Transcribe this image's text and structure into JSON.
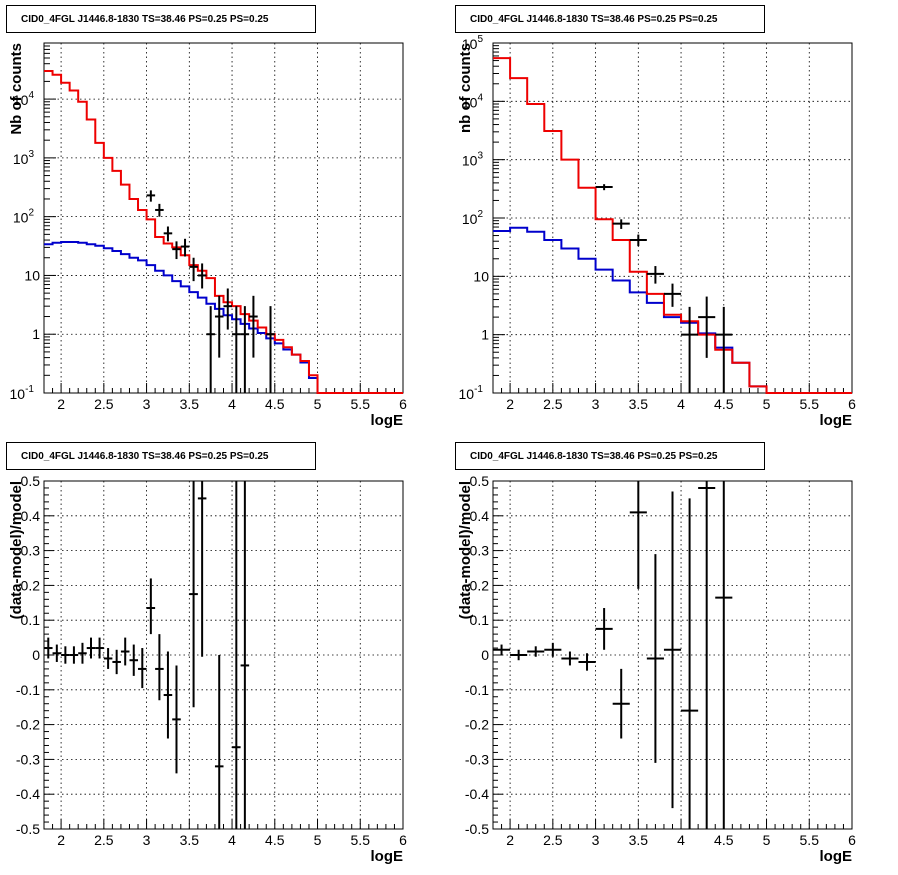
{
  "figure": {
    "panels": [
      {
        "title": "CID0_4FGL J1446.8-1830 TS=38.46 PS=0.25 PS=0.25"
      },
      {
        "title": "CID0_4FGL J1446.8-1830 TS=38.46 PS=0.25 PS=0.25"
      },
      {
        "title": "CID0_4FGL J1446.8-1830 TS=38.46 PS=0.25 PS=0.25"
      },
      {
        "title": "CID0_4FGL J1446.8-1830 TS=38.46 PS=0.25 PS=0.25"
      }
    ]
  },
  "colors": {
    "total_model": "#ee0000",
    "background_model": "#0000cc",
    "data": "#000000"
  },
  "chart_data": [
    {
      "type": "line",
      "title": "CID0_4FGL J1446.8-1830 TS=38.46 PS=0.25 PS=0.25",
      "xlabel": "logE",
      "ylabel": "Nb of counts",
      "xlim": [
        1.8,
        6.0
      ],
      "ylim": [
        0.1,
        90000
      ],
      "yscale": "log",
      "grid": true,
      "xticks": [
        "2",
        "2.5",
        "3",
        "3.5",
        "4",
        "4.5",
        "5",
        "5.5",
        "6"
      ],
      "yticks": [
        "10^-1",
        "1",
        "10",
        "10^2",
        "10^3",
        "10^4"
      ],
      "bin_edges": [
        1.8,
        1.9,
        2.0,
        2.1,
        2.2,
        2.3,
        2.4,
        2.5,
        2.6,
        2.7,
        2.8,
        2.9,
        3.0,
        3.1,
        3.2,
        3.3,
        3.4,
        3.5,
        3.6,
        3.7,
        3.8,
        3.9,
        4.0,
        4.1,
        4.2,
        4.3,
        4.4,
        4.5,
        4.6,
        4.7,
        4.8,
        4.9,
        5.0,
        5.1,
        5.2,
        5.3,
        5.4,
        5.5,
        5.6,
        5.7,
        5.8,
        5.9,
        6.0
      ],
      "series": [
        {
          "values": [
            30000,
            26000,
            19000,
            14000,
            9000,
            4500,
            1800,
            1000,
            600,
            350,
            200,
            130,
            90,
            45,
            35,
            30,
            22,
            15,
            12,
            9,
            4.5,
            3.5,
            3.0,
            2.2,
            1.7,
            1.3,
            1.0,
            0.8,
            0.6,
            0.45,
            0.35,
            0.2,
            0.1,
            0.1,
            0.1,
            0.1,
            0.1,
            0.1,
            0.1,
            0.1,
            0.1,
            0.1
          ]
        },
        {
          "values": [
            34,
            36,
            37,
            37,
            36,
            34,
            32,
            29,
            26,
            23,
            20,
            18,
            15,
            12,
            10,
            8,
            6.5,
            5.2,
            4.2,
            3.3,
            2.7,
            2.1,
            1.8,
            1.5,
            1.25,
            1.05,
            0.85,
            0.7,
            0.55,
            0.45,
            0.33,
            0.18,
            0.1,
            0.1,
            0.1,
            0.1,
            0.1,
            0.1,
            0.1,
            0.1,
            0.1,
            0.1
          ]
        }
      ],
      "points": [
        {
          "x": 3.05,
          "y": 230,
          "ylo": 180,
          "yhi": 280
        },
        {
          "x": 3.15,
          "y": 130,
          "ylo": 100,
          "yhi": 165
        },
        {
          "x": 3.25,
          "y": 52,
          "ylo": 38,
          "yhi": 68
        },
        {
          "x": 3.35,
          "y": 28,
          "ylo": 19,
          "yhi": 38
        },
        {
          "x": 3.45,
          "y": 31,
          "ylo": 21,
          "yhi": 42
        },
        {
          "x": 3.55,
          "y": 14,
          "ylo": 8,
          "yhi": 20
        },
        {
          "x": 3.65,
          "y": 10,
          "ylo": 6,
          "yhi": 16
        },
        {
          "x": 3.75,
          "y": 1,
          "ylo": 0.1,
          "yhi": 3
        },
        {
          "x": 3.85,
          "y": 2,
          "ylo": 0.4,
          "yhi": 4.5
        },
        {
          "x": 3.95,
          "y": 3,
          "ylo": 1.2,
          "yhi": 6
        },
        {
          "x": 4.05,
          "y": 1,
          "ylo": 0.1,
          "yhi": 3
        },
        {
          "x": 4.15,
          "y": 1,
          "ylo": 0.1,
          "yhi": 3
        },
        {
          "x": 4.25,
          "y": 2,
          "ylo": 0.4,
          "yhi": 4.5
        },
        {
          "x": 4.45,
          "y": 1,
          "ylo": 0.1,
          "yhi": 3
        }
      ]
    },
    {
      "type": "line",
      "title": "CID0_4FGL J1446.8-1830 TS=38.46 PS=0.25 PS=0.25",
      "xlabel": "logE",
      "ylabel": "nb of counts",
      "xlim": [
        1.8,
        6.0
      ],
      "ylim": [
        0.1,
        100000
      ],
      "yscale": "log",
      "grid": true,
      "xticks": [
        "2",
        "2.5",
        "3",
        "3.5",
        "4",
        "4.5",
        "5",
        "5.5",
        "6"
      ],
      "yticks": [
        "10^-1",
        "1",
        "10",
        "10^2",
        "10^3",
        "10^4",
        "10^5"
      ],
      "bin_edges": [
        1.8,
        2.0,
        2.2,
        2.4,
        2.6,
        2.8,
        3.0,
        3.2,
        3.4,
        3.6,
        3.8,
        4.0,
        4.2,
        4.4,
        4.6,
        4.8,
        5.0,
        5.2,
        5.4,
        5.6,
        5.8,
        6.0
      ],
      "series": [
        {
          "values": [
            55000,
            25000,
            9000,
            3100,
            1000,
            330,
            95,
            42,
            12,
            5,
            2.2,
            1.7,
            1.0,
            0.55,
            0.33,
            0.13,
            0.1,
            0.1,
            0.1,
            0.1,
            0.1
          ]
        },
        {
          "values": [
            60,
            68,
            58,
            42,
            30,
            20,
            13,
            8.5,
            5.3,
            3.5,
            2.0,
            1.6,
            1.05,
            0.6,
            0.33,
            0.13,
            0.1,
            0.1,
            0.1,
            0.1,
            0.1
          ]
        }
      ],
      "points": [
        {
          "x": 3.1,
          "y": 340,
          "ylo": 300,
          "yhi": 380
        },
        {
          "x": 3.3,
          "y": 80,
          "ylo": 65,
          "yhi": 95
        },
        {
          "x": 3.5,
          "y": 42,
          "ylo": 33,
          "yhi": 52
        },
        {
          "x": 3.7,
          "y": 11,
          "ylo": 7.5,
          "yhi": 15
        },
        {
          "x": 3.9,
          "y": 5,
          "ylo": 3,
          "yhi": 7.5
        },
        {
          "x": 4.1,
          "y": 1,
          "ylo": 0.1,
          "yhi": 3
        },
        {
          "x": 4.3,
          "y": 2,
          "ylo": 0.4,
          "yhi": 4.5
        },
        {
          "x": 4.5,
          "y": 1,
          "ylo": 0.1,
          "yhi": 3
        }
      ]
    },
    {
      "type": "scatter",
      "title": "CID0_4FGL J1446.8-1830 TS=38.46 PS=0.25 PS=0.25",
      "xlabel": "logE",
      "ylabel": "(data-model)/model",
      "xlim": [
        1.8,
        6.0
      ],
      "ylim": [
        -0.5,
        0.5
      ],
      "grid": true,
      "xticks": [
        "2",
        "2.5",
        "3",
        "3.5",
        "4",
        "4.5",
        "5",
        "5.5",
        "6"
      ],
      "yticks": [
        "-0.5",
        "-0.4",
        "-0.3",
        "-0.2",
        "-0.1",
        "0",
        "0.1",
        "0.2",
        "0.3",
        "0.4",
        "0.5"
      ],
      "points": [
        {
          "x": 1.85,
          "y": 0.02,
          "ylo": -0.01,
          "yhi": 0.05
        },
        {
          "x": 1.95,
          "y": 0.005,
          "ylo": -0.02,
          "yhi": 0.03
        },
        {
          "x": 2.05,
          "y": 0.0,
          "ylo": -0.025,
          "yhi": 0.025
        },
        {
          "x": 2.15,
          "y": 0.0,
          "ylo": -0.025,
          "yhi": 0.025
        },
        {
          "x": 2.25,
          "y": 0.005,
          "ylo": -0.025,
          "yhi": 0.035
        },
        {
          "x": 2.35,
          "y": 0.02,
          "ylo": -0.01,
          "yhi": 0.05
        },
        {
          "x": 2.45,
          "y": 0.02,
          "ylo": -0.01,
          "yhi": 0.05
        },
        {
          "x": 2.55,
          "y": -0.01,
          "ylo": -0.04,
          "yhi": 0.02
        },
        {
          "x": 2.65,
          "y": -0.02,
          "ylo": -0.055,
          "yhi": 0.015
        },
        {
          "x": 2.75,
          "y": 0.01,
          "ylo": -0.03,
          "yhi": 0.05
        },
        {
          "x": 2.85,
          "y": -0.015,
          "ylo": -0.06,
          "yhi": 0.03
        },
        {
          "x": 2.95,
          "y": -0.04,
          "ylo": -0.095,
          "yhi": 0.02
        },
        {
          "x": 3.05,
          "y": 0.135,
          "ylo": 0.06,
          "yhi": 0.22
        },
        {
          "x": 3.15,
          "y": -0.04,
          "ylo": -0.13,
          "yhi": 0.06
        },
        {
          "x": 3.25,
          "y": -0.115,
          "ylo": -0.24,
          "yhi": 0.01
        },
        {
          "x": 3.35,
          "y": -0.185,
          "ylo": -0.34,
          "yhi": -0.03
        },
        {
          "x": 3.55,
          "y": 0.175,
          "ylo": -0.15,
          "yhi": 0.5
        },
        {
          "x": 3.65,
          "y": 0.45,
          "ylo": -0.005,
          "yhi": 0.5
        },
        {
          "x": 3.85,
          "y": -0.32,
          "ylo": -0.5,
          "yhi": 0.0
        },
        {
          "x": 4.05,
          "y": -0.265,
          "ylo": -0.5,
          "yhi": 0.5
        },
        {
          "x": 4.15,
          "y": -0.03,
          "ylo": -0.5,
          "yhi": 0.5
        }
      ]
    },
    {
      "type": "scatter",
      "title": "CID0_4FGL J1446.8-1830 TS=38.46 PS=0.25 PS=0.25",
      "xlabel": "logE",
      "ylabel": "(data-model)/model",
      "xlim": [
        1.8,
        6.0
      ],
      "ylim": [
        -0.5,
        0.5
      ],
      "grid": true,
      "xticks": [
        "2",
        "2.5",
        "3",
        "3.5",
        "4",
        "4.5",
        "5",
        "5.5",
        "6"
      ],
      "yticks": [
        "-0.5",
        "-0.4",
        "-0.3",
        "-0.2",
        "-0.1",
        "0",
        "0.1",
        "0.2",
        "0.3",
        "0.4",
        "0.5"
      ],
      "points": [
        {
          "x": 1.9,
          "y": 0.015,
          "ylo": 0.0,
          "yhi": 0.03
        },
        {
          "x": 2.1,
          "y": 0.0,
          "ylo": -0.015,
          "yhi": 0.015
        },
        {
          "x": 2.3,
          "y": 0.01,
          "ylo": -0.005,
          "yhi": 0.025
        },
        {
          "x": 2.5,
          "y": 0.015,
          "ylo": -0.005,
          "yhi": 0.035
        },
        {
          "x": 2.7,
          "y": -0.01,
          "ylo": -0.03,
          "yhi": 0.01
        },
        {
          "x": 2.9,
          "y": -0.02,
          "ylo": -0.045,
          "yhi": 0.005
        },
        {
          "x": 3.1,
          "y": 0.075,
          "ylo": 0.015,
          "yhi": 0.135
        },
        {
          "x": 3.3,
          "y": -0.14,
          "ylo": -0.24,
          "yhi": -0.04
        },
        {
          "x": 3.5,
          "y": 0.41,
          "ylo": 0.19,
          "yhi": 0.5
        },
        {
          "x": 3.7,
          "y": -0.01,
          "ylo": -0.31,
          "yhi": 0.29
        },
        {
          "x": 3.9,
          "y": 0.015,
          "ylo": -0.44,
          "yhi": 0.47
        },
        {
          "x": 4.1,
          "y": -0.16,
          "ylo": -0.5,
          "yhi": 0.45
        },
        {
          "x": 4.3,
          "y": 0.48,
          "ylo": -0.5,
          "yhi": 0.5
        },
        {
          "x": 4.5,
          "y": 0.165,
          "ylo": -0.5,
          "yhi": 0.5
        }
      ]
    }
  ]
}
